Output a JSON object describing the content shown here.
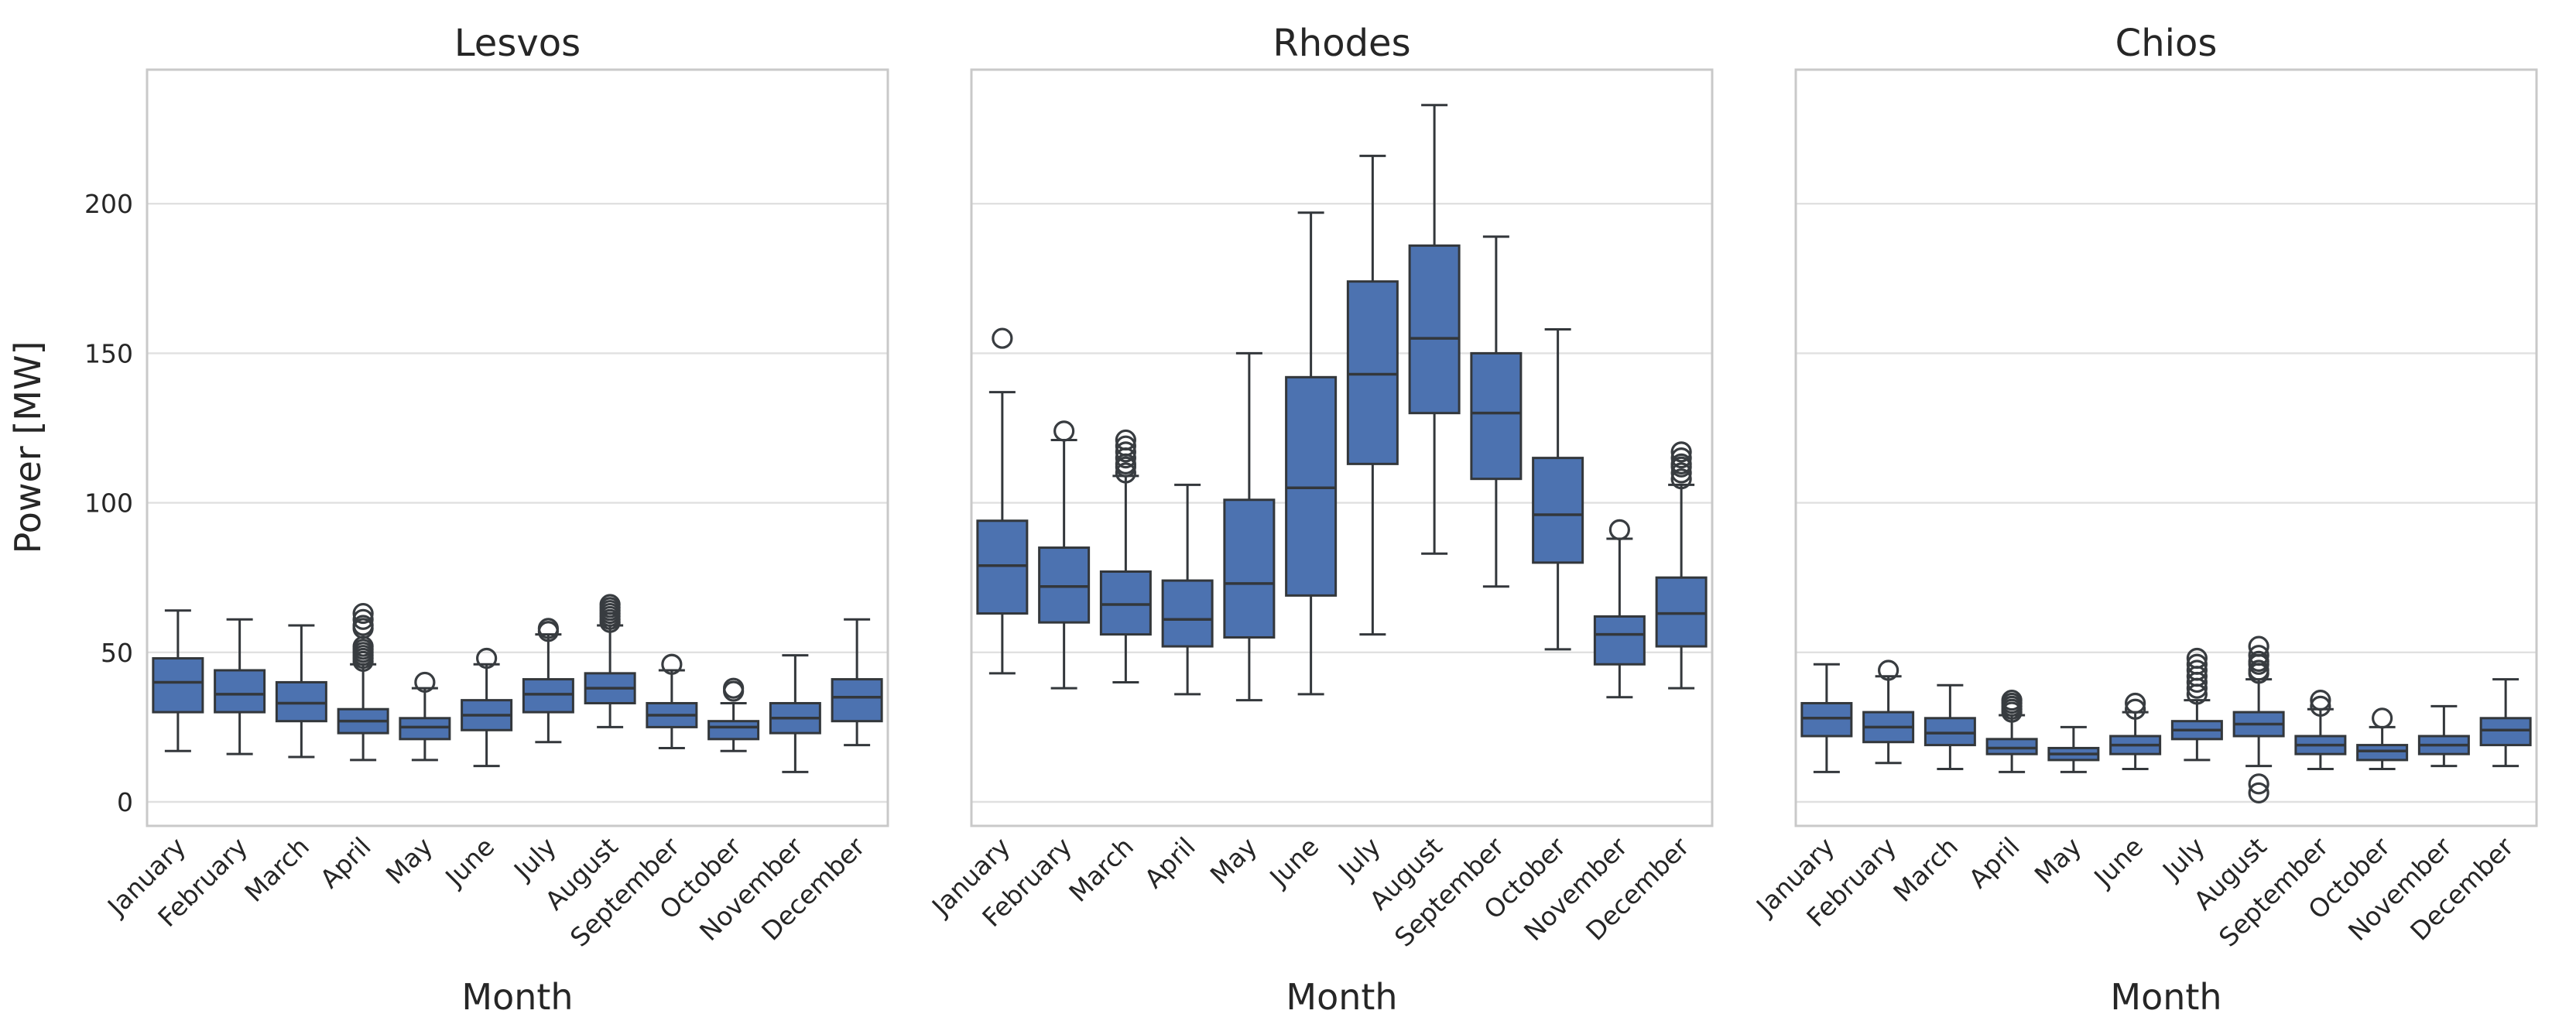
{
  "figure": {
    "ylabel": "Power [MW]",
    "xlabel": "Month",
    "yticks": [
      0,
      50,
      100,
      150,
      200
    ],
    "months": [
      "January",
      "February",
      "March",
      "April",
      "May",
      "June",
      "July",
      "August",
      "September",
      "October",
      "November",
      "December"
    ],
    "colors": {
      "box_fill": "#4C72B0",
      "box_edge": "#33373B",
      "whisker": "#33373B",
      "flier_edge": "#383C40",
      "grid": "#e0e0e0",
      "spine": "#c9c9c9",
      "text": "#262626",
      "background": "#ffffff"
    },
    "panels": [
      {
        "title": "Lesvos",
        "boxes": [
          {
            "month": "January",
            "whisker_low": 17,
            "q1": 30,
            "median": 40,
            "q3": 48,
            "whisker_high": 64,
            "outliers": []
          },
          {
            "month": "February",
            "whisker_low": 16,
            "q1": 30,
            "median": 36,
            "q3": 44,
            "whisker_high": 61,
            "outliers": []
          },
          {
            "month": "March",
            "whisker_low": 15,
            "q1": 27,
            "median": 33,
            "q3": 40,
            "whisker_high": 59,
            "outliers": []
          },
          {
            "month": "April",
            "whisker_low": 14,
            "q1": 23,
            "median": 27,
            "q3": 31,
            "whisker_high": 46,
            "outliers": [
              47,
              48,
              49,
              50,
              51,
              52,
              58,
              59,
              61,
              63
            ]
          },
          {
            "month": "May",
            "whisker_low": 14,
            "q1": 21,
            "median": 25,
            "q3": 28,
            "whisker_high": 38,
            "outliers": [
              40
            ]
          },
          {
            "month": "June",
            "whisker_low": 12,
            "q1": 24,
            "median": 29,
            "q3": 34,
            "whisker_high": 46,
            "outliers": [
              48
            ]
          },
          {
            "month": "July",
            "whisker_low": 20,
            "q1": 30,
            "median": 36,
            "q3": 41,
            "whisker_high": 56,
            "outliers": [
              57,
              58
            ]
          },
          {
            "month": "August",
            "whisker_low": 25,
            "q1": 33,
            "median": 38,
            "q3": 43,
            "whisker_high": 59,
            "outliers": [
              60,
              61,
              62,
              63,
              64,
              65,
              66
            ]
          },
          {
            "month": "September",
            "whisker_low": 18,
            "q1": 25,
            "median": 29,
            "q3": 33,
            "whisker_high": 44,
            "outliers": [
              46
            ]
          },
          {
            "month": "October",
            "whisker_low": 17,
            "q1": 21,
            "median": 25,
            "q3": 27,
            "whisker_high": 33,
            "outliers": [
              37,
              38
            ]
          },
          {
            "month": "November",
            "whisker_low": 10,
            "q1": 23,
            "median": 28,
            "q3": 33,
            "whisker_high": 49,
            "outliers": []
          },
          {
            "month": "December",
            "whisker_low": 19,
            "q1": 27,
            "median": 35,
            "q3": 41,
            "whisker_high": 61,
            "outliers": []
          }
        ]
      },
      {
        "title": "Rhodes",
        "boxes": [
          {
            "month": "January",
            "whisker_low": 43,
            "q1": 63,
            "median": 79,
            "q3": 94,
            "whisker_high": 137,
            "outliers": [
              155
            ]
          },
          {
            "month": "February",
            "whisker_low": 38,
            "q1": 60,
            "median": 72,
            "q3": 85,
            "whisker_high": 121,
            "outliers": [
              124
            ]
          },
          {
            "month": "March",
            "whisker_low": 40,
            "q1": 56,
            "median": 66,
            "q3": 77,
            "whisker_high": 109,
            "outliers": [
              110,
              112,
              113,
              115,
              117,
              119,
              121
            ]
          },
          {
            "month": "April",
            "whisker_low": 36,
            "q1": 52,
            "median": 61,
            "q3": 74,
            "whisker_high": 106,
            "outliers": []
          },
          {
            "month": "May",
            "whisker_low": 34,
            "q1": 55,
            "median": 73,
            "q3": 101,
            "whisker_high": 150,
            "outliers": []
          },
          {
            "month": "June",
            "whisker_low": 36,
            "q1": 69,
            "median": 105,
            "q3": 142,
            "whisker_high": 197,
            "outliers": []
          },
          {
            "month": "July",
            "whisker_low": 56,
            "q1": 113,
            "median": 143,
            "q3": 174,
            "whisker_high": 216,
            "outliers": []
          },
          {
            "month": "August",
            "whisker_low": 83,
            "q1": 130,
            "median": 155,
            "q3": 186,
            "whisker_high": 233,
            "outliers": []
          },
          {
            "month": "September",
            "whisker_low": 72,
            "q1": 108,
            "median": 130,
            "q3": 150,
            "whisker_high": 189,
            "outliers": []
          },
          {
            "month": "October",
            "whisker_low": 51,
            "q1": 80,
            "median": 96,
            "q3": 115,
            "whisker_high": 158,
            "outliers": []
          },
          {
            "month": "November",
            "whisker_low": 35,
            "q1": 46,
            "median": 56,
            "q3": 62,
            "whisker_high": 88,
            "outliers": [
              91
            ]
          },
          {
            "month": "December",
            "whisker_low": 38,
            "q1": 52,
            "median": 63,
            "q3": 75,
            "whisker_high": 106,
            "outliers": [
              108,
              110,
              112,
              113,
              115,
              117
            ]
          }
        ]
      },
      {
        "title": "Chios",
        "boxes": [
          {
            "month": "January",
            "whisker_low": 10,
            "q1": 22,
            "median": 28,
            "q3": 33,
            "whisker_high": 46,
            "outliers": []
          },
          {
            "month": "February",
            "whisker_low": 13,
            "q1": 20,
            "median": 25,
            "q3": 30,
            "whisker_high": 42,
            "outliers": [
              44
            ]
          },
          {
            "month": "March",
            "whisker_low": 11,
            "q1": 19,
            "median": 23,
            "q3": 28,
            "whisker_high": 39,
            "outliers": []
          },
          {
            "month": "April",
            "whisker_low": 10,
            "q1": 16,
            "median": 18,
            "q3": 21,
            "whisker_high": 29,
            "outliers": [
              30,
              31,
              32,
              33,
              34
            ]
          },
          {
            "month": "May",
            "whisker_low": 10,
            "q1": 14,
            "median": 16,
            "q3": 18,
            "whisker_high": 25,
            "outliers": []
          },
          {
            "month": "June",
            "whisker_low": 11,
            "q1": 16,
            "median": 19,
            "q3": 22,
            "whisker_high": 30,
            "outliers": [
              31,
              33
            ]
          },
          {
            "month": "July",
            "whisker_low": 14,
            "q1": 21,
            "median": 24,
            "q3": 27,
            "whisker_high": 34,
            "outliers": [
              36,
              38,
              40,
              42,
              44,
              46,
              48
            ]
          },
          {
            "month": "August",
            "whisker_low": 12,
            "q1": 22,
            "median": 26,
            "q3": 30,
            "whisker_high": 41,
            "outliers": [
              3,
              6,
              43,
              44,
              46,
              47,
              49,
              52
            ]
          },
          {
            "month": "September",
            "whisker_low": 11,
            "q1": 16,
            "median": 19,
            "q3": 22,
            "whisker_high": 31,
            "outliers": [
              32,
              34
            ]
          },
          {
            "month": "October",
            "whisker_low": 11,
            "q1": 14,
            "median": 17,
            "q3": 19,
            "whisker_high": 25,
            "outliers": [
              28
            ]
          },
          {
            "month": "November",
            "whisker_low": 12,
            "q1": 16,
            "median": 19,
            "q3": 22,
            "whisker_high": 32,
            "outliers": []
          },
          {
            "month": "December",
            "whisker_low": 12,
            "q1": 19,
            "median": 24,
            "q3": 28,
            "whisker_high": 41,
            "outliers": []
          }
        ]
      }
    ]
  },
  "chart_data": [
    {
      "type": "boxplot",
      "title": "Lesvos",
      "xlabel": "Month",
      "ylabel": "Power [MW]",
      "ylim": [
        -8,
        245
      ],
      "yticks": [
        0,
        50,
        100,
        150,
        200
      ],
      "grid": true,
      "categories": [
        "January",
        "February",
        "March",
        "April",
        "May",
        "June",
        "July",
        "August",
        "September",
        "October",
        "November",
        "December"
      ],
      "whisker_low": [
        17,
        16,
        15,
        14,
        14,
        12,
        20,
        25,
        18,
        17,
        10,
        19
      ],
      "q1": [
        30,
        30,
        27,
        23,
        21,
        24,
        30,
        33,
        25,
        21,
        23,
        27
      ],
      "median": [
        40,
        36,
        33,
        27,
        25,
        29,
        36,
        38,
        29,
        25,
        28,
        35
      ],
      "q3": [
        48,
        44,
        40,
        31,
        28,
        34,
        41,
        43,
        33,
        27,
        33,
        41
      ],
      "whisker_high": [
        64,
        61,
        59,
        46,
        38,
        46,
        56,
        59,
        44,
        33,
        49,
        61
      ],
      "outliers": [
        [],
        [],
        [],
        [
          47,
          48,
          49,
          50,
          51,
          52,
          58,
          59,
          61,
          63
        ],
        [
          40
        ],
        [
          48
        ],
        [
          57,
          58
        ],
        [
          60,
          61,
          62,
          63,
          64,
          65,
          66
        ],
        [
          46
        ],
        [
          37,
          38
        ],
        [],
        []
      ]
    },
    {
      "type": "boxplot",
      "title": "Rhodes",
      "xlabel": "Month",
      "ylabel": "Power [MW]",
      "ylim": [
        -8,
        245
      ],
      "yticks": [
        0,
        50,
        100,
        150,
        200
      ],
      "grid": true,
      "categories": [
        "January",
        "February",
        "March",
        "April",
        "May",
        "June",
        "July",
        "August",
        "September",
        "October",
        "November",
        "December"
      ],
      "whisker_low": [
        43,
        38,
        40,
        36,
        34,
        36,
        56,
        83,
        72,
        51,
        35,
        38
      ],
      "q1": [
        63,
        60,
        56,
        52,
        55,
        69,
        113,
        130,
        108,
        80,
        46,
        52
      ],
      "median": [
        79,
        72,
        66,
        61,
        73,
        105,
        143,
        155,
        130,
        96,
        56,
        63
      ],
      "q3": [
        94,
        85,
        77,
        74,
        101,
        142,
        174,
        186,
        150,
        115,
        62,
        75
      ],
      "whisker_high": [
        137,
        121,
        109,
        106,
        150,
        197,
        216,
        233,
        189,
        158,
        88,
        106
      ],
      "outliers": [
        [
          155
        ],
        [
          124
        ],
        [
          110,
          112,
          113,
          115,
          117,
          119,
          121
        ],
        [],
        [],
        [],
        [],
        [],
        [],
        [],
        [
          91
        ],
        [
          108,
          110,
          112,
          113,
          115,
          117
        ]
      ]
    },
    {
      "type": "boxplot",
      "title": "Chios",
      "xlabel": "Month",
      "ylabel": "Power [MW]",
      "ylim": [
        -8,
        245
      ],
      "yticks": [
        0,
        50,
        100,
        150,
        200
      ],
      "grid": true,
      "categories": [
        "January",
        "February",
        "March",
        "April",
        "May",
        "June",
        "July",
        "August",
        "September",
        "October",
        "November",
        "December"
      ],
      "whisker_low": [
        10,
        13,
        11,
        10,
        10,
        11,
        14,
        12,
        11,
        11,
        12,
        12
      ],
      "q1": [
        22,
        20,
        19,
        16,
        14,
        16,
        21,
        22,
        16,
        14,
        16,
        19
      ],
      "median": [
        28,
        25,
        23,
        18,
        16,
        19,
        24,
        26,
        19,
        17,
        19,
        24
      ],
      "q3": [
        33,
        30,
        28,
        21,
        18,
        22,
        27,
        30,
        22,
        19,
        22,
        28
      ],
      "whisker_high": [
        46,
        42,
        39,
        29,
        25,
        30,
        34,
        41,
        31,
        25,
        32,
        41
      ],
      "outliers": [
        [],
        [
          44
        ],
        [],
        [
          30,
          31,
          32,
          33,
          34
        ],
        [],
        [
          31,
          33
        ],
        [
          36,
          38,
          40,
          42,
          44,
          46,
          48
        ],
        [
          3,
          6,
          43,
          44,
          46,
          47,
          49,
          52
        ],
        [
          32,
          34
        ],
        [
          28
        ],
        [],
        []
      ]
    }
  ]
}
